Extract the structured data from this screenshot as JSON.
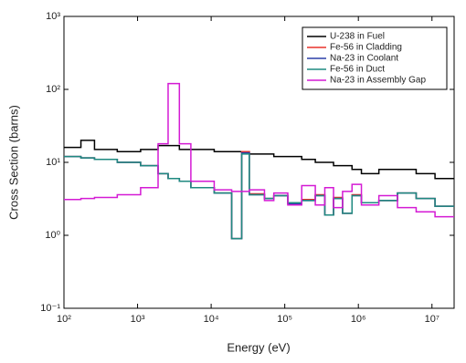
{
  "chart_data": {
    "type": "line",
    "step": true,
    "x_label": "Energy (eV)",
    "y_label": "Cross Section (barns)",
    "x_log": true,
    "y_log": true,
    "legend": "upper right",
    "x": [
      100,
      170,
      260,
      530,
      1100,
      1900,
      2600,
      3700,
      5300,
      11000,
      19000,
      26000,
      33000,
      53000,
      71000,
      110000,
      170000,
      260000,
      350000,
      460000,
      610000,
      820000,
      1100000,
      1900000,
      3400000,
      6100000,
      11000000
    ],
    "series": [
      {
        "name": "U-238 in Fuel",
        "color": "#000000",
        "values": [
          16,
          20,
          15,
          14,
          15,
          17,
          17,
          15,
          15,
          14,
          14,
          14,
          13,
          13,
          12,
          12,
          11,
          10,
          10,
          9,
          9,
          8,
          7,
          8,
          8,
          7,
          6
        ]
      },
      {
        "name": "Fe-56 in Cladding",
        "color": "#e8322c",
        "values": [
          12,
          11.5,
          11,
          10,
          9,
          7,
          6,
          5.5,
          4.5,
          3.8,
          0.9,
          14,
          3.7,
          3.2,
          3.5,
          2.7,
          3.1,
          3.6,
          1.9,
          3.3,
          2.0,
          3.6,
          2.8,
          3.0,
          3.8,
          3.2,
          2.5
        ]
      },
      {
        "name": "Na-23 in Coolant",
        "color": "#2c3ea8",
        "values": [
          12,
          11.5,
          11,
          10,
          9,
          7,
          6,
          5.5,
          4.5,
          3.8,
          0.9,
          13.5,
          3.6,
          3.2,
          3.5,
          2.7,
          3.0,
          3.5,
          1.9,
          3.2,
          2.0,
          3.5,
          2.8,
          3.0,
          3.8,
          3.2,
          2.5
        ]
      },
      {
        "name": "Fe-56 in Duct",
        "color": "#1f8a80",
        "values": [
          12,
          11.5,
          11,
          10,
          9,
          7,
          6,
          5.5,
          4.5,
          3.8,
          0.9,
          13,
          3.6,
          3.2,
          3.5,
          2.8,
          3.0,
          3.5,
          1.9,
          3.2,
          2.0,
          3.5,
          2.8,
          3.0,
          3.8,
          3.2,
          2.5
        ]
      },
      {
        "name": "Na-23 in Assembly Gap",
        "color": "#d41ad4",
        "values": [
          3.1,
          3.2,
          3.3,
          3.6,
          4.5,
          18,
          120,
          18,
          5.5,
          4.2,
          4.0,
          4.0,
          4.2,
          3.0,
          3.8,
          2.6,
          4.8,
          2.6,
          4.5,
          2.4,
          4.0,
          5.0,
          2.6,
          3.5,
          2.4,
          2.1,
          1.8
        ]
      }
    ],
    "xlim": [
      100,
      20000000
    ],
    "ylim": [
      0.1,
      1000
    ],
    "xticks": [
      {
        "value": 100,
        "label": "10²"
      },
      {
        "value": 1000,
        "label": "10³"
      },
      {
        "value": 10000,
        "label": "10⁴"
      },
      {
        "value": 100000,
        "label": "10⁵"
      },
      {
        "value": 1000000,
        "label": "10⁶"
      },
      {
        "value": 10000000,
        "label": "10⁷"
      }
    ],
    "yticks": [
      {
        "value": 0.1,
        "label": "10⁻¹"
      },
      {
        "value": 1,
        "label": "10⁰"
      },
      {
        "value": 10,
        "label": "10¹"
      },
      {
        "value": 100,
        "label": "10²"
      },
      {
        "value": 1000,
        "label": "10³"
      }
    ]
  }
}
